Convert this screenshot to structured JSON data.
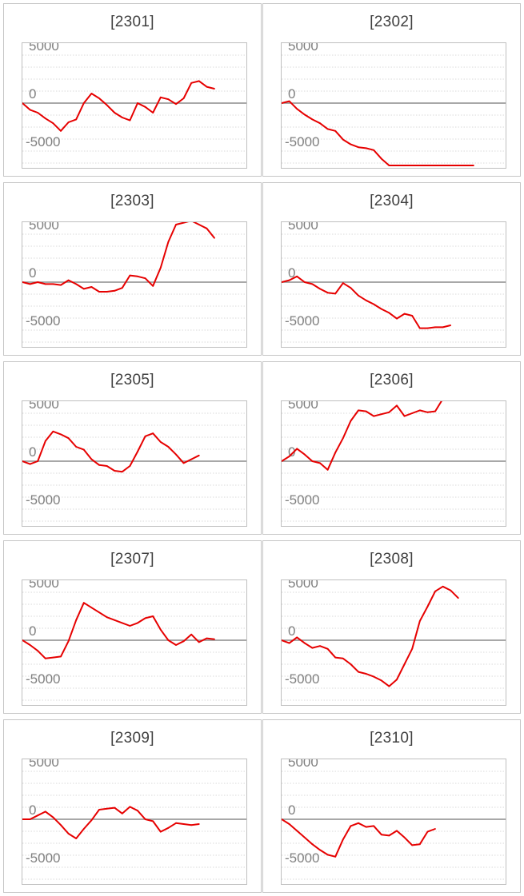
{
  "chart_data": [
    {
      "type": "line",
      "title": "[2301]",
      "ylim": [
        -6500,
        6500
      ],
      "yticks": [
        5000,
        0,
        -5000
      ],
      "ytick_labels": [
        "5000",
        "0",
        "-5000"
      ],
      "grid": true,
      "series": [
        {
          "color": "#e60000",
          "values": [
            0,
            -700,
            -1000,
            -1600,
            -2100,
            -2900,
            -2000,
            -1700,
            0,
            1000,
            500,
            -200,
            -1000,
            -1500,
            -1800,
            0,
            -400,
            -1000,
            600,
            400,
            -100,
            500,
            2100,
            2300,
            1700,
            1500
          ]
        }
      ]
    },
    {
      "type": "line",
      "title": "[2302]",
      "ylim": [
        -6500,
        6500
      ],
      "yticks": [
        5000,
        0,
        -5000
      ],
      "ytick_labels": [
        "5000",
        "0",
        "-5000"
      ],
      "grid": true,
      "series": [
        {
          "color": "#e60000",
          "values": [
            0,
            200,
            -600,
            -1200,
            -1700,
            -2100,
            -2700,
            -2900,
            -3800,
            -4300,
            -4600,
            -4700,
            -4900,
            -5800,
            -6500,
            -6500,
            -6500,
            -6500,
            -6500,
            -6500,
            -6500,
            -6500,
            -6500,
            -6500,
            -6500,
            -6500
          ]
        }
      ]
    },
    {
      "type": "line",
      "title": "[2303]",
      "ylim": [
        -6500,
        6500
      ],
      "yticks": [
        5000,
        0,
        -5000
      ],
      "ytick_labels": [
        "5000",
        "0",
        "-5000"
      ],
      "grid": true,
      "series": [
        {
          "color": "#e60000",
          "values": [
            0,
            -200,
            0,
            -200,
            -200,
            -300,
            200,
            -200,
            -700,
            -500,
            -1000,
            -1000,
            -900,
            -600,
            700,
            600,
            400,
            -400,
            1500,
            4200,
            6000,
            6200,
            6400,
            6000,
            5600,
            4600
          ]
        }
      ]
    },
    {
      "type": "line",
      "title": "[2304]",
      "ylim": [
        -6500,
        6500
      ],
      "yticks": [
        5000,
        0,
        -5000
      ],
      "ytick_labels": [
        "5000",
        "0",
        "-5000"
      ],
      "grid": true,
      "series": [
        {
          "color": "#e60000",
          "values": [
            0,
            200,
            600,
            0,
            -200,
            -700,
            -1100,
            -1200,
            -100,
            -600,
            -1400,
            -1900,
            -2300,
            -2800,
            -3200,
            -3800,
            -3300,
            -3500,
            -4800,
            -4800,
            -4700,
            -4700,
            -4500
          ]
        }
      ]
    },
    {
      "type": "line",
      "title": "[2305]",
      "ylim": [
        -6500,
        6500
      ],
      "yticks": [
        5000,
        0,
        -5000
      ],
      "ytick_labels": [
        "5000",
        "0",
        "-5000"
      ],
      "grid": true,
      "series": [
        {
          "color": "#e60000",
          "values": [
            0,
            -300,
            0,
            2100,
            3100,
            2800,
            2400,
            1500,
            1200,
            200,
            -400,
            -500,
            -1000,
            -1100,
            -500,
            1000,
            2600,
            2900,
            2000,
            1500,
            700,
            -200,
            200,
            600
          ]
        }
      ]
    },
    {
      "type": "line",
      "title": "[2306]",
      "ylim": [
        -6500,
        6500
      ],
      "yticks": [
        5000,
        0,
        -5000
      ],
      "ytick_labels": [
        "5000",
        "0",
        "-5000"
      ],
      "grid": true,
      "series": [
        {
          "color": "#e60000",
          "values": [
            0,
            500,
            1300,
            700,
            0,
            -200,
            -900,
            900,
            2400,
            4200,
            5300,
            5200,
            4700,
            4900,
            5100,
            5800,
            4700,
            5000,
            5300,
            5100,
            5200,
            6500,
            6500,
            6500
          ]
        }
      ]
    },
    {
      "type": "line",
      "title": "[2307]",
      "ylim": [
        -6500,
        6500
      ],
      "yticks": [
        5000,
        0,
        -5000
      ],
      "ytick_labels": [
        "5000",
        "0",
        "-5000"
      ],
      "grid": true,
      "series": [
        {
          "color": "#e60000",
          "values": [
            0,
            -500,
            -1100,
            -1900,
            -1800,
            -1700,
            -100,
            2100,
            3900,
            3400,
            2900,
            2400,
            2100,
            1800,
            1500,
            1800,
            2300,
            2500,
            1100,
            0,
            -500,
            -100,
            600,
            -200,
            200,
            100
          ]
        }
      ]
    },
    {
      "type": "line",
      "title": "[2308]",
      "ylim": [
        -6500,
        6500
      ],
      "yticks": [
        5000,
        0,
        -5000
      ],
      "ytick_labels": [
        "5000",
        "0",
        "-5000"
      ],
      "grid": true,
      "series": [
        {
          "color": "#e60000",
          "values": [
            0,
            -300,
            300,
            -300,
            -800,
            -600,
            -900,
            -1800,
            -1900,
            -2500,
            -3300,
            -3500,
            -3800,
            -4200,
            -4800,
            -4100,
            -2500,
            -900,
            2000,
            3500,
            5100,
            5600,
            5200,
            4400
          ]
        }
      ]
    },
    {
      "type": "line",
      "title": "[2309]",
      "ylim": [
        -6500,
        6500
      ],
      "yticks": [
        5000,
        0,
        -5000
      ],
      "ytick_labels": [
        "5000",
        "0",
        "-5000"
      ],
      "grid": true,
      "series": [
        {
          "color": "#e60000",
          "values": [
            0,
            0,
            400,
            800,
            200,
            -600,
            -1500,
            -2000,
            -1000,
            -100,
            1000,
            1100,
            1200,
            600,
            1300,
            900,
            0,
            -200,
            -1300,
            -900,
            -400,
            -500,
            -600,
            -500
          ]
        }
      ]
    },
    {
      "type": "line",
      "title": "[2310]",
      "ylim": [
        -6500,
        6500
      ],
      "yticks": [
        5000,
        0,
        -5000
      ],
      "ytick_labels": [
        "5000",
        "0",
        "-5000"
      ],
      "grid": true,
      "series": [
        {
          "color": "#e60000",
          "values": [
            0,
            -500,
            -1200,
            -1900,
            -2600,
            -3200,
            -3700,
            -3900,
            -2100,
            -700,
            -400,
            -800,
            -700,
            -1600,
            -1700,
            -1200,
            -1900,
            -2700,
            -2600,
            -1300,
            -1000
          ]
        }
      ]
    }
  ]
}
